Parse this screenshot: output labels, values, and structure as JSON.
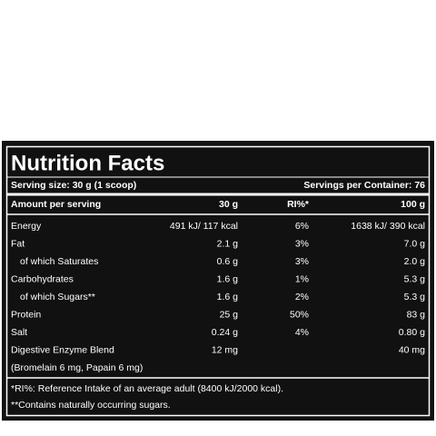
{
  "header": {
    "title": "Nutrition Facts",
    "serving_size": "Serving size: 30 g (1 scoop)",
    "servings_per_container": "Servings per Container: 76"
  },
  "table": {
    "columns": [
      "Amount per serving",
      "30 g",
      "RI%*",
      "100 g"
    ],
    "rows": [
      {
        "name": "Energy",
        "per_serving": "491 kJ/ 117 kcal",
        "ri": "6%",
        "per_100g": "1638 kJ/ 390 kcal"
      },
      {
        "name": "Fat",
        "per_serving": "2.1 g",
        "ri": "3%",
        "per_100g": "7.0 g"
      },
      {
        "name": "of which Saturates",
        "per_serving": "0.6 g",
        "ri": "3%",
        "per_100g": "2.0 g"
      },
      {
        "name": "Carbohydrates",
        "per_serving": "1.6 g",
        "ri": "1%",
        "per_100g": "5.3 g"
      },
      {
        "name": "of which Sugars**",
        "per_serving": "1.6 g",
        "ri": "2%",
        "per_100g": "5.3 g"
      },
      {
        "name": "Protein",
        "per_serving": "25 g",
        "ri": "50%",
        "per_100g": "83 g"
      },
      {
        "name": "Salt",
        "per_serving": "0.24 g",
        "ri": "4%",
        "per_100g": "0.80 g"
      },
      {
        "name": "Digestive Enzyme Blend",
        "per_serving": "12 mg",
        "per_100g": "40 mg"
      },
      {
        "name": "(Bromelain 6 mg, Papain 6 mg)"
      }
    ]
  },
  "footnotes": [
    "*RI%: Reference Intake of an average adult (8400 kJ/2000 kcal).",
    "**Contains naturally occurring sugars."
  ]
}
